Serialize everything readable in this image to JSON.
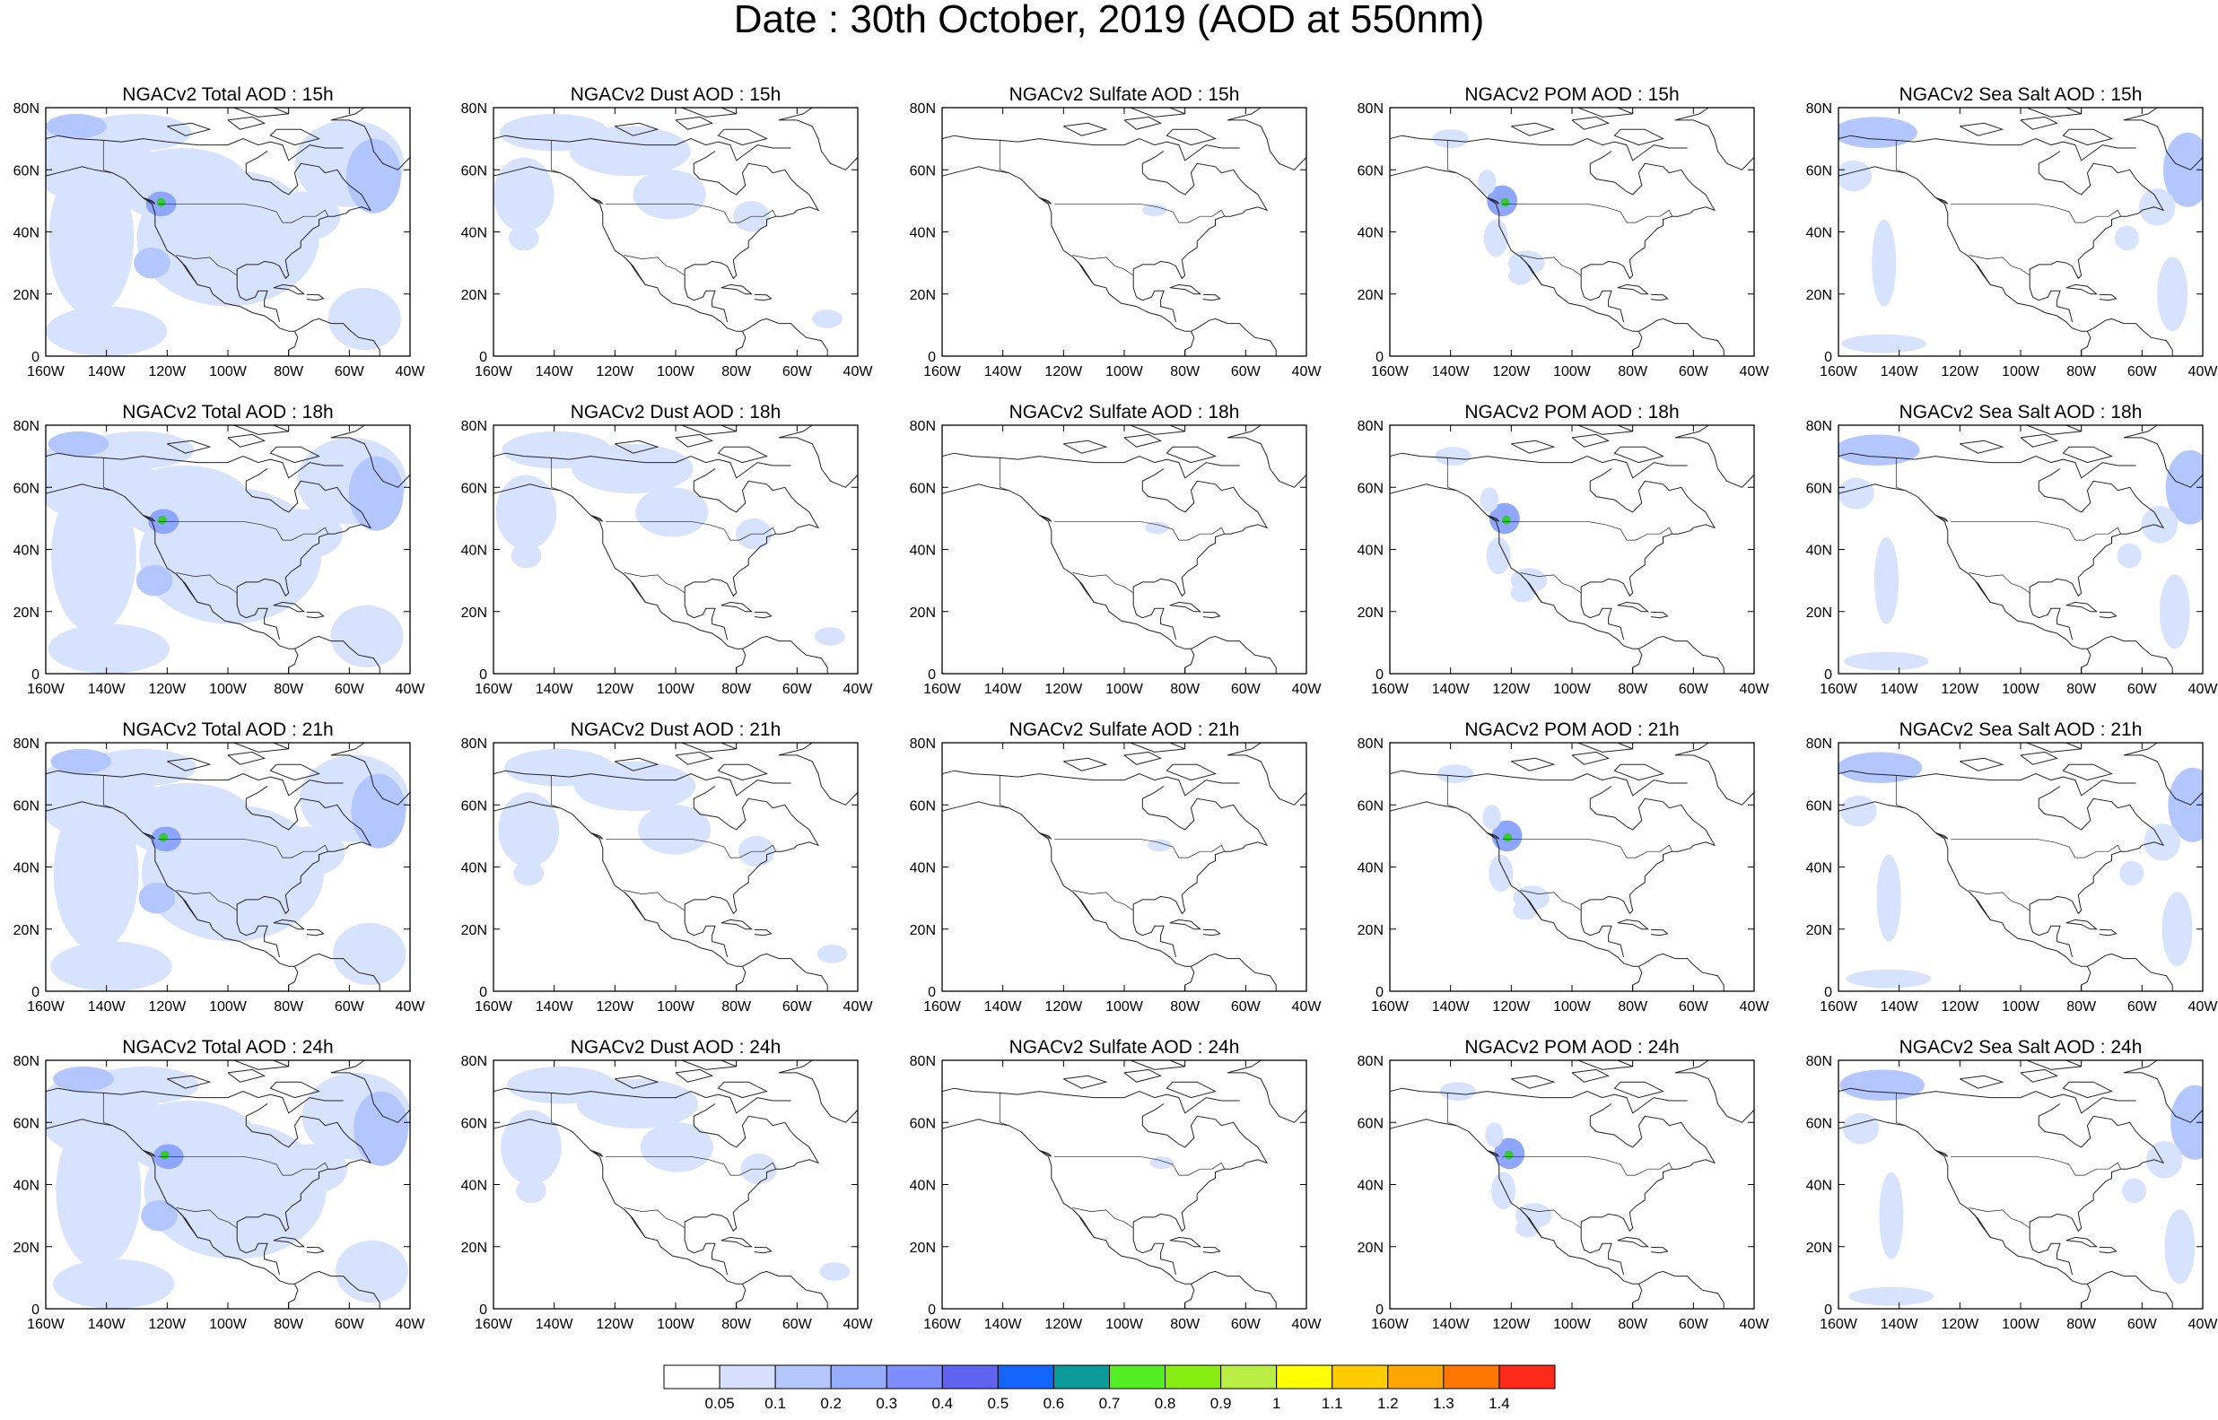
{
  "title": "Date : 30th October, 2019 (AOD at 550nm)",
  "colors": {
    "land_outline": "#222222",
    "frame": "#000000",
    "aod_low": "#d7e2ff",
    "aod_mid": "#b3c6ff",
    "aod_high": "#8ea6ff",
    "aod_peak": "#4a6cf2",
    "plume_core": "#38c838"
  },
  "axis": {
    "lon_ticks": [
      "160W",
      "140W",
      "120W",
      "100W",
      "80W",
      "60W",
      "40W"
    ],
    "lat_ticks": [
      "80N",
      "60N",
      "40N",
      "20N",
      "0"
    ],
    "lon_range": [
      -160,
      -40
    ],
    "lat_range": [
      0,
      80
    ]
  },
  "rows": [
    "15h",
    "18h",
    "21h",
    "24h"
  ],
  "panels": [
    [
      "NGACv2 Total AOD : 15h",
      "NGACv2 Dust AOD : 15h",
      "NGACv2 Sulfate AOD : 15h",
      "NGACv2 POM AOD : 15h",
      "NGACv2 Sea Salt AOD : 15h"
    ],
    [
      "NGACv2 Total AOD : 18h",
      "NGACv2 Dust AOD : 18h",
      "NGACv2 Sulfate AOD : 18h",
      "NGACv2 POM AOD : 18h",
      "NGACv2 Sea Salt AOD : 18h"
    ],
    [
      "NGACv2 Total AOD : 21h",
      "NGACv2 Dust AOD : 21h",
      "NGACv2 Sulfate AOD : 21h",
      "NGACv2 POM AOD : 21h",
      "NGACv2 Sea Salt AOD : 21h"
    ],
    [
      "NGACv2 Total AOD : 24h",
      "NGACv2 Dust AOD : 24h",
      "NGACv2 Sulfate AOD : 24h",
      "NGACv2 POM AOD : 24h",
      "NGACv2 Sea Salt  AOD : 24h"
    ]
  ],
  "colorbar": {
    "colors": [
      "#ffffff",
      "#d7e0ff",
      "#b6c6ff",
      "#96adff",
      "#7d8dff",
      "#5f63f0",
      "#1466ff",
      "#0b9a9a",
      "#55ee22",
      "#88ee11",
      "#bbee44",
      "#ffff00",
      "#ffcc00",
      "#ffa500",
      "#ff7700",
      "#ff2a1a"
    ],
    "labels": [
      "0.05",
      "0.1",
      "0.2",
      "0.3",
      "0.4",
      "0.5",
      "0.6",
      "0.7",
      "0.8",
      "0.9",
      "1",
      "1.1",
      "1.2",
      "1.3",
      "1.4"
    ]
  }
}
